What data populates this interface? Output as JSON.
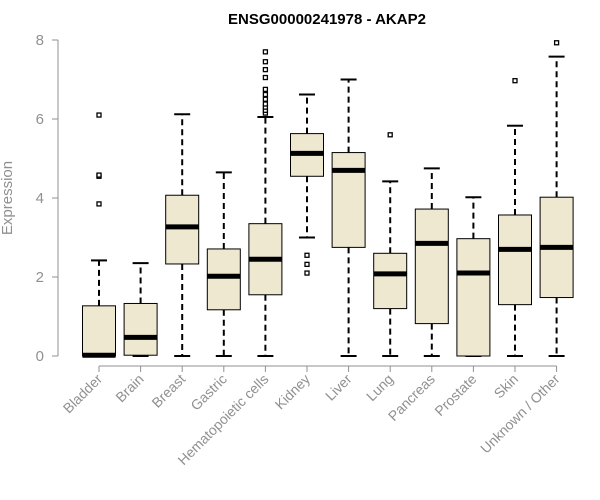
{
  "chart_data": {
    "type": "boxplot",
    "title": "ENSG00000241978 - AKAP2",
    "ylabel": "Expression",
    "xlabel": "",
    "ylim": [
      0,
      8
    ],
    "yticks": [
      0,
      2,
      4,
      6,
      8
    ],
    "colors": {
      "box_fill": "#efe8d0",
      "axis": "#909090",
      "stroke": "#000000"
    },
    "categories": [
      "Bladder",
      "Brain",
      "Breast",
      "Gastric",
      "Hematopoietic cells",
      "Kidney",
      "Liver",
      "Lung",
      "Pancreas",
      "Prostate",
      "Skin",
      "Unknown / Other"
    ],
    "boxes": [
      {
        "label": "Bladder",
        "whisker_low": 0,
        "q1": 0,
        "median": 0.02,
        "q3": 1.27,
        "whisker_high": 2.42,
        "outliers": [
          3.85,
          4.55,
          4.58,
          6.1
        ]
      },
      {
        "label": "Brain",
        "whisker_low": 0,
        "q1": 0.02,
        "median": 0.47,
        "q3": 1.33,
        "whisker_high": 2.35,
        "outliers": []
      },
      {
        "label": "Breast",
        "whisker_low": 0,
        "q1": 2.33,
        "median": 3.27,
        "q3": 4.07,
        "whisker_high": 6.12,
        "outliers": []
      },
      {
        "label": "Gastric",
        "whisker_low": 0,
        "q1": 1.17,
        "median": 2.02,
        "q3": 2.71,
        "whisker_high": 4.65,
        "outliers": []
      },
      {
        "label": "Hematopoietic cells",
        "whisker_low": 0,
        "q1": 1.55,
        "median": 2.45,
        "q3": 3.35,
        "whisker_high": 6.05,
        "outliers": [
          6.15,
          6.22,
          6.3,
          6.38,
          6.5,
          6.62,
          6.75,
          7.05,
          7.25,
          7.45,
          7.7
        ]
      },
      {
        "label": "Kidney",
        "whisker_low": 3.0,
        "q1": 4.55,
        "median": 5.13,
        "q3": 5.63,
        "whisker_high": 6.62,
        "outliers": [
          2.1,
          2.32,
          2.55
        ]
      },
      {
        "label": "Liver",
        "whisker_low": 0,
        "q1": 2.75,
        "median": 4.7,
        "q3": 5.15,
        "whisker_high": 7.0,
        "outliers": []
      },
      {
        "label": "Lung",
        "whisker_low": 0,
        "q1": 1.2,
        "median": 2.08,
        "q3": 2.6,
        "whisker_high": 4.42,
        "outliers": [
          5.6
        ]
      },
      {
        "label": "Pancreas",
        "whisker_low": 0,
        "q1": 0.82,
        "median": 2.85,
        "q3": 3.72,
        "whisker_high": 4.75,
        "outliers": []
      },
      {
        "label": "Prostate",
        "whisker_low": 0,
        "q1": 0,
        "median": 2.1,
        "q3": 2.97,
        "whisker_high": 4.02,
        "outliers": []
      },
      {
        "label": "Skin",
        "whisker_low": 0,
        "q1": 1.3,
        "median": 2.7,
        "q3": 3.57,
        "whisker_high": 5.83,
        "outliers": [
          6.97
        ]
      },
      {
        "label": "Unknown / Other",
        "whisker_low": 0,
        "q1": 1.48,
        "median": 2.75,
        "q3": 4.02,
        "whisker_high": 7.58,
        "outliers": [
          7.93
        ]
      }
    ]
  }
}
